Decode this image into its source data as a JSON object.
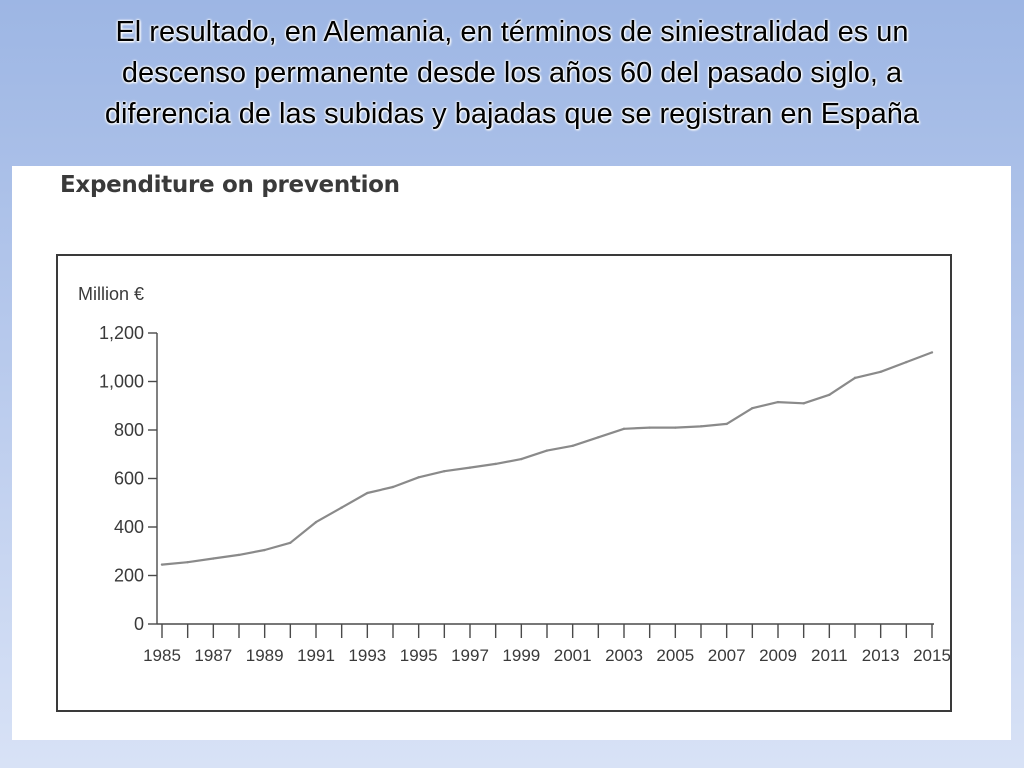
{
  "slide": {
    "title_lines": [
      "El resultado,  en Alemania, en términos de siniestralidad es un",
      "descenso permanente desde los años 60 del pasado siglo, a",
      "diferencia de las subidas y bajadas que se registran en España"
    ]
  },
  "figure": {
    "heading": "Expenditure on prevention"
  },
  "chart_data": {
    "type": "line",
    "ylabel": "Million €",
    "ylim": [
      0,
      1200
    ],
    "yticks": [
      0,
      200,
      400,
      600,
      800,
      1000,
      1200
    ],
    "ytick_labels": [
      "0",
      "200",
      "400",
      "600",
      "800",
      "1,000",
      "1,200"
    ],
    "xlim": [
      1985,
      2015
    ],
    "xtick_labels": [
      "1985",
      "1987",
      "1989",
      "1991",
      "1993",
      "1995",
      "1997",
      "1999",
      "2001",
      "2003",
      "2005",
      "2007",
      "2009",
      "2011",
      "2013",
      "2015"
    ],
    "grid": false,
    "series": [
      {
        "color": "#8a8a8a",
        "x": [
          1985,
          1986,
          1987,
          1988,
          1989,
          1990,
          1991,
          1992,
          1993,
          1994,
          1995,
          1996,
          1997,
          1998,
          1999,
          2000,
          2001,
          2002,
          2003,
          2004,
          2005,
          2006,
          2007,
          2008,
          2009,
          2010,
          2011,
          2012,
          2013,
          2014,
          2015
        ],
        "y": [
          245,
          255,
          270,
          285,
          305,
          335,
          420,
          480,
          540,
          565,
          605,
          630,
          645,
          660,
          680,
          715,
          735,
          770,
          805,
          810,
          810,
          815,
          825,
          890,
          915,
          910,
          945,
          1015,
          1040,
          1080,
          1120
        ]
      }
    ]
  }
}
